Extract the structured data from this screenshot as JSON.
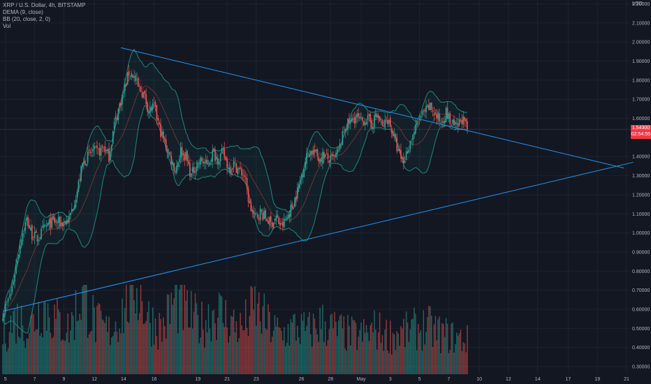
{
  "legend": {
    "symbol_line": "XRP / U.S. Dollar, 4h, BITSTAMP",
    "indicator_dema": "DEMA (9, close)",
    "indicator_bb": "BB (20, close, 2, 0)",
    "indicator_vol": "Vol"
  },
  "price_scale": {
    "currency": "USD",
    "current_price": "1.54300",
    "countdown": "02:54:55"
  },
  "colors": {
    "background": "#131722",
    "grid": "#1e2230",
    "up": "#26a69a",
    "down": "#ef5350",
    "trendline": "#2196f3",
    "bands": "#1b8a7a",
    "dema": "#b0413e",
    "price_line": "#f23645"
  },
  "chart_data": {
    "type": "candlestick",
    "timeframe": "4h",
    "ylim": [
      0.26,
      2.22
    ],
    "y_ticks": [
      {
        "value": 2.2,
        "label": "2.20000"
      },
      {
        "value": 2.1,
        "label": "2.10000"
      },
      {
        "value": 2.0,
        "label": "2.00000"
      },
      {
        "value": 1.9,
        "label": "1.90000"
      },
      {
        "value": 1.8,
        "label": "1.80000"
      },
      {
        "value": 1.7,
        "label": "1.70000"
      },
      {
        "value": 1.6,
        "label": "1.60000"
      },
      {
        "value": 1.4,
        "label": "1.40000"
      },
      {
        "value": 1.3,
        "label": "1.30000"
      },
      {
        "value": 1.2,
        "label": "1.20000"
      },
      {
        "value": 1.1,
        "label": "1.10000"
      },
      {
        "value": 1.0,
        "label": "1.00000"
      },
      {
        "value": 0.9,
        "label": "0.90000"
      },
      {
        "value": 0.8,
        "label": "0.80000"
      },
      {
        "value": 0.7,
        "label": "0.70000"
      },
      {
        "value": 0.6,
        "label": "0.60000"
      },
      {
        "value": 0.5,
        "label": "0.50000"
      },
      {
        "value": 0.4,
        "label": "0.40000"
      },
      {
        "value": 0.3,
        "label": "0.30000"
      }
    ],
    "x_ticks": [
      {
        "bar": 2,
        "label": "5"
      },
      {
        "bar": 24,
        "label": "7"
      },
      {
        "bar": 46,
        "label": "9"
      },
      {
        "bar": 69,
        "label": "12"
      },
      {
        "bar": 91,
        "label": "14"
      },
      {
        "bar": 114,
        "label": "16"
      },
      {
        "bar": 147,
        "label": "19"
      },
      {
        "bar": 169,
        "label": "21"
      },
      {
        "bar": 191,
        "label": "23"
      },
      {
        "bar": 225,
        "label": "26"
      },
      {
        "bar": 247,
        "label": "28"
      },
      {
        "bar": 270,
        "label": "May"
      },
      {
        "bar": 292,
        "label": "3"
      },
      {
        "bar": 314,
        "label": "5"
      },
      {
        "bar": 336,
        "label": "7"
      },
      {
        "bar": 359,
        "label": "10"
      },
      {
        "bar": 381,
        "label": "12"
      },
      {
        "bar": 403,
        "label": "14"
      },
      {
        "bar": 426,
        "label": "17"
      },
      {
        "bar": 448,
        "label": "19"
      },
      {
        "bar": 470,
        "label": "21"
      }
    ],
    "last_price": 1.543,
    "close_keyframes": [
      [
        0,
        0.58
      ],
      [
        6,
        0.68
      ],
      [
        10,
        0.83
      ],
      [
        14,
        0.98
      ],
      [
        18,
        1.07
      ],
      [
        22,
        0.99
      ],
      [
        26,
        0.97
      ],
      [
        32,
        1.03
      ],
      [
        38,
        1.06
      ],
      [
        44,
        1.05
      ],
      [
        50,
        1.07
      ],
      [
        56,
        1.22
      ],
      [
        60,
        1.36
      ],
      [
        64,
        1.4
      ],
      [
        68,
        1.43
      ],
      [
        72,
        1.42
      ],
      [
        76,
        1.45
      ],
      [
        80,
        1.4
      ],
      [
        84,
        1.57
      ],
      [
        88,
        1.67
      ],
      [
        92,
        1.76
      ],
      [
        95,
        1.84
      ],
      [
        98,
        1.83
      ],
      [
        102,
        1.76
      ],
      [
        106,
        1.73
      ],
      [
        110,
        1.64
      ],
      [
        114,
        1.66
      ],
      [
        118,
        1.55
      ],
      [
        122,
        1.47
      ],
      [
        126,
        1.4
      ],
      [
        130,
        1.33
      ],
      [
        134,
        1.43
      ],
      [
        138,
        1.4
      ],
      [
        142,
        1.3
      ],
      [
        146,
        1.36
      ],
      [
        150,
        1.38
      ],
      [
        154,
        1.35
      ],
      [
        158,
        1.42
      ],
      [
        162,
        1.39
      ],
      [
        166,
        1.42
      ],
      [
        170,
        1.34
      ],
      [
        174,
        1.36
      ],
      [
        178,
        1.33
      ],
      [
        182,
        1.3
      ],
      [
        186,
        1.14
      ],
      [
        190,
        1.08
      ],
      [
        194,
        1.11
      ],
      [
        198,
        1.08
      ],
      [
        202,
        1.05
      ],
      [
        206,
        1.08
      ],
      [
        210,
        1.03
      ],
      [
        214,
        1.08
      ],
      [
        218,
        1.14
      ],
      [
        222,
        1.22
      ],
      [
        226,
        1.33
      ],
      [
        230,
        1.42
      ],
      [
        234,
        1.43
      ],
      [
        238,
        1.39
      ],
      [
        242,
        1.41
      ],
      [
        246,
        1.38
      ],
      [
        250,
        1.39
      ],
      [
        254,
        1.45
      ],
      [
        258,
        1.56
      ],
      [
        262,
        1.58
      ],
      [
        266,
        1.61
      ],
      [
        270,
        1.58
      ],
      [
        274,
        1.6
      ],
      [
        278,
        1.57
      ],
      [
        282,
        1.62
      ],
      [
        286,
        1.55
      ],
      [
        290,
        1.6
      ],
      [
        294,
        1.52
      ],
      [
        298,
        1.42
      ],
      [
        302,
        1.37
      ],
      [
        306,
        1.46
      ],
      [
        310,
        1.53
      ],
      [
        314,
        1.6
      ],
      [
        318,
        1.63
      ],
      [
        322,
        1.66
      ],
      [
        326,
        1.62
      ],
      [
        330,
        1.58
      ],
      [
        334,
        1.63
      ],
      [
        338,
        1.57
      ],
      [
        342,
        1.55
      ],
      [
        346,
        1.6
      ],
      [
        350,
        1.543
      ]
    ],
    "volume_keyframes": [
      [
        0,
        0.35
      ],
      [
        10,
        0.5
      ],
      [
        20,
        0.42
      ],
      [
        30,
        0.62
      ],
      [
        40,
        0.48
      ],
      [
        50,
        0.4
      ],
      [
        60,
        0.72
      ],
      [
        70,
        0.45
      ],
      [
        80,
        0.38
      ],
      [
        90,
        0.55
      ],
      [
        100,
        0.82
      ],
      [
        110,
        0.5
      ],
      [
        120,
        0.4
      ],
      [
        130,
        0.68
      ],
      [
        140,
        0.52
      ],
      [
        150,
        0.45
      ],
      [
        160,
        0.58
      ],
      [
        170,
        0.48
      ],
      [
        180,
        0.4
      ],
      [
        190,
        0.6
      ],
      [
        200,
        0.44
      ],
      [
        210,
        0.35
      ],
      [
        220,
        0.42
      ],
      [
        230,
        0.38
      ],
      [
        240,
        0.46
      ],
      [
        250,
        0.4
      ],
      [
        260,
        0.36
      ],
      [
        270,
        0.34
      ],
      [
        280,
        0.4
      ],
      [
        290,
        0.35
      ],
      [
        300,
        0.36
      ],
      [
        310,
        0.4
      ],
      [
        320,
        0.42
      ],
      [
        330,
        0.36
      ],
      [
        340,
        0.33
      ],
      [
        350,
        0.3
      ]
    ],
    "volume_max": 0.45,
    "trendlines": [
      {
        "name": "upper",
        "from": [
          89,
          1.97
        ],
        "to": [
          468,
          1.34
        ]
      },
      {
        "name": "lower",
        "from": [
          0,
          0.59
        ],
        "to": [
          475,
          1.37
        ]
      }
    ]
  }
}
